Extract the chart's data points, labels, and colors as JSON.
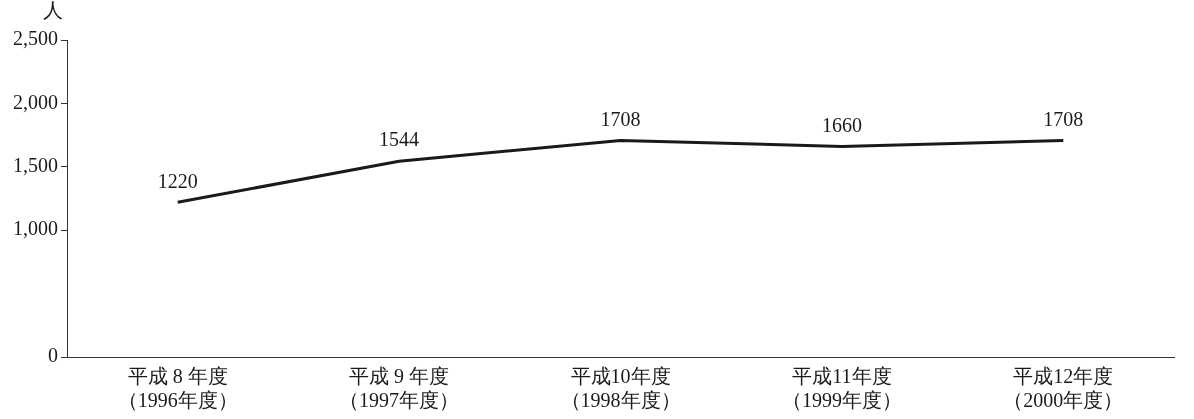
{
  "chart_data": {
    "type": "line",
    "ylabel": "人",
    "categories": [
      "平成 8 年度（1996年度）",
      "平成 9 年度（1997年度）",
      "平成10年度（1998年度）",
      "平成11年度（1999年度）",
      "平成12年度（2000年度）"
    ],
    "series": [
      {
        "color": "#1a1a1a",
        "values": [
          1220,
          1544,
          1708,
          1660,
          1708
        ]
      }
    ],
    "ylim": [
      0,
      2500
    ],
    "yticks": [
      0,
      {
        "value": 1000,
        "label": "1,000"
      },
      {
        "value": 1500,
        "label": "1,500"
      },
      {
        "value": 2000,
        "label": "2,000"
      },
      {
        "value": 2500,
        "label": "2,500"
      }
    ],
    "grid": false,
    "legend": false,
    "marker": "none",
    "line_style": "solid",
    "data_labels": true
  }
}
